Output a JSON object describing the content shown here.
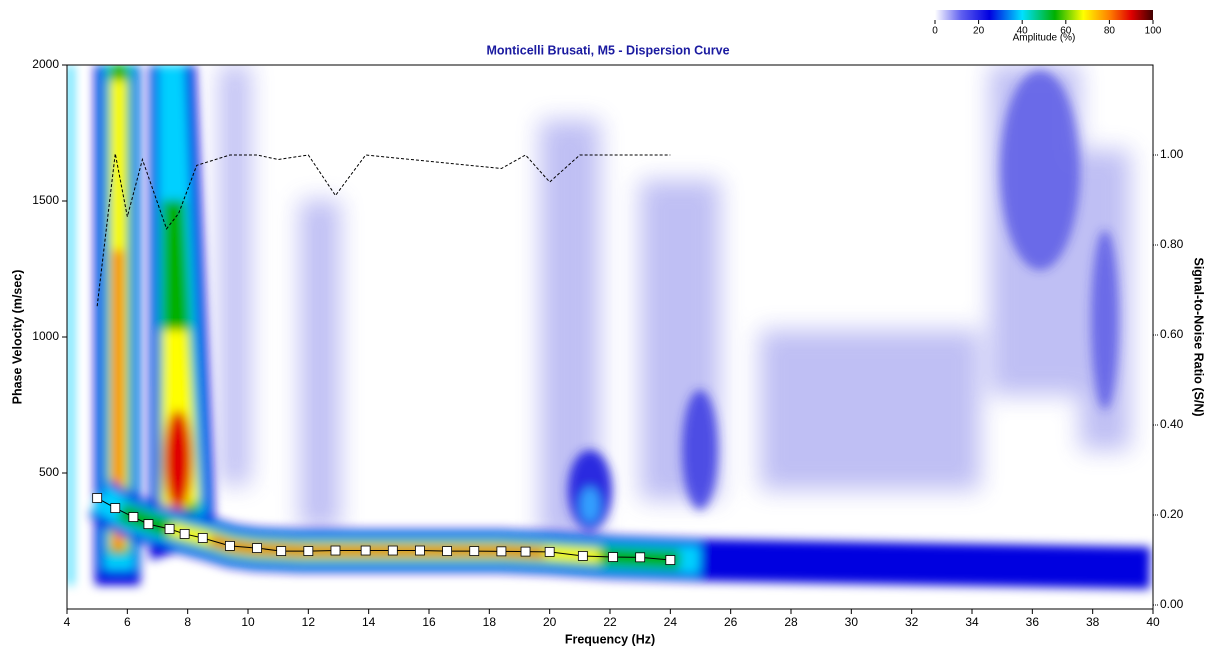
{
  "chart_data": {
    "type": "line",
    "title": "Monticelli Brusati, M5 - Dispersion Curve",
    "x_label": "Frequency (Hz)",
    "y_label": "Phase Velocity (m/sec)",
    "y2_label": "Signal-to-Noise Ratio (S/N)",
    "xlim": [
      4,
      40
    ],
    "xticks": [
      4,
      6,
      8,
      10,
      12,
      14,
      16,
      18,
      20,
      22,
      24,
      26,
      28,
      30,
      32,
      34,
      36,
      38,
      40
    ],
    "ylim": [
      0,
      2000
    ],
    "yticks": [
      500,
      1000,
      1500,
      2000
    ],
    "y2lim": [
      0,
      1.2
    ],
    "y2ticks": [
      {
        "value": 0,
        "label": "0.00"
      },
      {
        "value": 0.2,
        "label": "0.20"
      },
      {
        "value": 0.4,
        "label": "0.40"
      },
      {
        "value": 0.6,
        "label": "0.60"
      },
      {
        "value": 0.8,
        "label": "0.80"
      },
      {
        "value": 1,
        "label": "1.00"
      }
    ],
    "series": [
      {
        "color": "#000000",
        "marker": "square",
        "x": [
          5.0,
          5.6,
          6.2,
          6.7,
          7.4,
          7.9,
          8.5,
          9.4,
          10.3,
          11.1,
          12.0,
          12.9,
          13.9,
          14.8,
          15.7,
          16.6,
          17.5,
          18.4,
          19.2,
          20.0,
          21.1,
          22.1,
          23.0,
          24.0
        ],
        "values": [
          408,
          371,
          338,
          312,
          294,
          276,
          261,
          232,
          224,
          213,
          213,
          215,
          215,
          215,
          215,
          213,
          213,
          212,
          211,
          210,
          195,
          191,
          190,
          180
        ]
      },
      {
        "color": "#000000",
        "dash": true,
        "axis": "y2",
        "x": [
          5.0,
          5.6,
          6.0,
          6.5,
          7.3,
          7.7,
          8.3,
          9.4,
          10.3,
          11.0,
          12.0,
          12.9,
          13.9,
          18.4,
          19.2,
          20.0,
          21.0,
          24.0
        ],
        "values": [
          0.664,
          1.003,
          0.863,
          0.99,
          0.836,
          0.87,
          0.977,
          1.0,
          1.0,
          0.99,
          1.0,
          0.91,
          1.0,
          0.97,
          1.0,
          0.94,
          1.0,
          1.0
        ]
      }
    ],
    "colorbar": {
      "label": "Amplitude (%)",
      "ticks": [
        0,
        20,
        40,
        60,
        80,
        100
      ]
    }
  }
}
